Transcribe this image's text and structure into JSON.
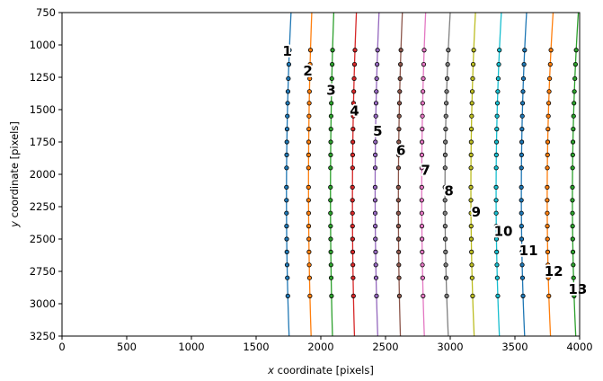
{
  "chart_data": {
    "type": "scatter",
    "title": "",
    "xlabel_prefix": "x",
    "xlabel_suffix": " coordinate [pixels]",
    "ylabel_prefix": "y",
    "ylabel_suffix": " coordinate [pixels]",
    "xlim": [
      0,
      4000
    ],
    "ylim": [
      3250,
      750
    ],
    "y_inverted": true,
    "grid": false,
    "legend": "none",
    "xticks": [
      "0",
      "500",
      "1000",
      "1500",
      "2000",
      "2500",
      "3000",
      "3500",
      "4000"
    ],
    "yticks": [
      "750",
      "1000",
      "1250",
      "1500",
      "1750",
      "2000",
      "2250",
      "2500",
      "2750",
      "3000",
      "3250"
    ],
    "point_y": [
      1040,
      1150,
      1260,
      1360,
      1450,
      1550,
      1650,
      1750,
      1850,
      1950,
      2100,
      2200,
      2300,
      2400,
      2500,
      2600,
      2700,
      2800,
      2940
    ],
    "curve_y_range": [
      750,
      3250
    ],
    "series": [
      {
        "label": "1",
        "color": "#1f77b4",
        "x_center": 1735,
        "x_top": 1770,
        "x_bottom": 1755,
        "label_x": 1740,
        "label_y": 1050
      },
      {
        "label": "2",
        "color": "#ff7f0e",
        "x_center": 1905,
        "x_top": 1930,
        "x_bottom": 1925,
        "label_x": 1900,
        "label_y": 1200
      },
      {
        "label": "3",
        "color": "#2ca02c",
        "x_center": 2075,
        "x_top": 2100,
        "x_bottom": 2090,
        "label_x": 2080,
        "label_y": 1350
      },
      {
        "label": "4",
        "color": "#d62728",
        "x_center": 2245,
        "x_top": 2275,
        "x_bottom": 2260,
        "label_x": 2260,
        "label_y": 1510
      },
      {
        "label": "5",
        "color": "#9467bd",
        "x_center": 2420,
        "x_top": 2450,
        "x_bottom": 2440,
        "label_x": 2440,
        "label_y": 1665
      },
      {
        "label": "6",
        "color": "#8c564b",
        "x_center": 2600,
        "x_top": 2630,
        "x_bottom": 2615,
        "label_x": 2620,
        "label_y": 1815
      },
      {
        "label": "7",
        "color": "#e377c2",
        "x_center": 2780,
        "x_top": 2810,
        "x_bottom": 2800,
        "label_x": 2810,
        "label_y": 1970
      },
      {
        "label": "8",
        "color": "#7f7f7f",
        "x_center": 2960,
        "x_top": 3000,
        "x_bottom": 2985,
        "label_x": 2990,
        "label_y": 2130
      },
      {
        "label": "9",
        "color": "#bcbd22",
        "x_center": 3160,
        "x_top": 3195,
        "x_bottom": 3185,
        "label_x": 3200,
        "label_y": 2290
      },
      {
        "label": "10",
        "color": "#17becf",
        "x_center": 3355,
        "x_top": 3395,
        "x_bottom": 3380,
        "label_x": 3410,
        "label_y": 2440
      },
      {
        "label": "11",
        "color": "#1f77b4",
        "x_center": 3550,
        "x_top": 3590,
        "x_bottom": 3575,
        "label_x": 3605,
        "label_y": 2590
      },
      {
        "label": "12",
        "color": "#ff7f0e",
        "x_center": 3750,
        "x_top": 3795,
        "x_bottom": 3775,
        "label_x": 3800,
        "label_y": 2750
      },
      {
        "label": "13",
        "color": "#2ca02c",
        "x_center": 3945,
        "x_top": 3990,
        "x_bottom": 3970,
        "label_x": 3985,
        "label_y": 2890
      }
    ]
  }
}
